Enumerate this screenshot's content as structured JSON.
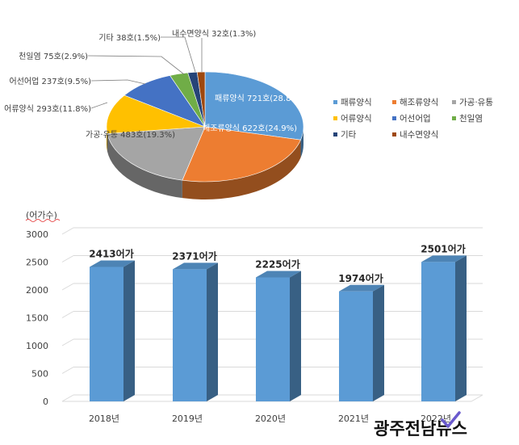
{
  "chart_data": [
    {
      "type": "pie",
      "categories": [
        "패류양식",
        "해조류양식",
        "가공·유통",
        "어류양식",
        "어선어업",
        "천일염",
        "기타",
        "내수면양식"
      ],
      "values": [
        721,
        622,
        483,
        293,
        237,
        75,
        38,
        32
      ],
      "labels": [
        "패류양식 721호(28.8%)",
        "해조류양식 622호(24.9%)",
        "가공·유통 483호(19.3%)",
        "어류양식 293호(11.8%)",
        "어선어업 237호(9.5%)",
        "천일염 75호(2.9%)",
        "기타 38호(1.5%)",
        "내수면양식 32호(1.3%)"
      ],
      "colors": [
        "#5B9BD5",
        "#ED7D31",
        "#A5A5A5",
        "#FFC000",
        "#4472C4",
        "#70AD47",
        "#264478",
        "#9E480E"
      ],
      "legend": [
        "패류양식",
        "해조류양식",
        "가공·유통",
        "어류양식",
        "어선어업",
        "천일염",
        "기타",
        "내수면양식"
      ],
      "legend_position": "right"
    },
    {
      "type": "bar",
      "ylabel": "(어가수)",
      "categories": [
        "2018년",
        "2019년",
        "2020년",
        "2021년",
        "2022년"
      ],
      "values": [
        2413,
        2371,
        2225,
        1974,
        2501
      ],
      "data_labels": [
        "2413어가",
        "2371어가",
        "2225어가",
        "1974어가",
        "2501어가"
      ],
      "yticks": [
        "0",
        "500",
        "1000",
        "1500",
        "2000",
        "2500",
        "3000"
      ],
      "ylim": [
        0,
        3000
      ],
      "grid": true,
      "bar_color": "#5B9BD5"
    }
  ],
  "watermark": "광주전남뉴스"
}
